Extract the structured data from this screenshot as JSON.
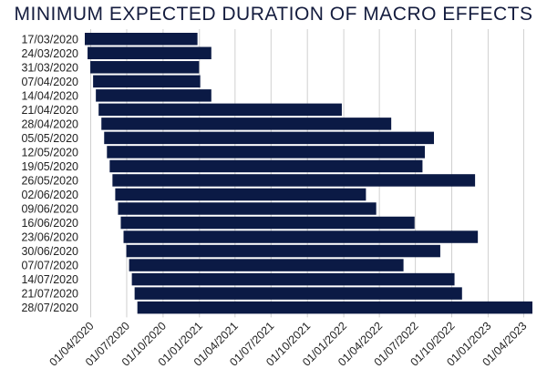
{
  "chart_data": {
    "type": "bar",
    "orientation": "horizontal",
    "title": "MINIMUM EXPECTED DURATION OF MACRO EFFECTS",
    "xlabel": "",
    "ylabel": "",
    "bar_color": "#0b1a45",
    "grid_color": "#d0d0d0",
    "grid": true,
    "x_axis_type": "date",
    "xlim": [
      "2020-03-17",
      "2023-04-23"
    ],
    "x_ticks": [
      {
        "date": "2020-04-01",
        "label": "01/04/2020"
      },
      {
        "date": "2020-07-01",
        "label": "01/07/2020"
      },
      {
        "date": "2020-10-01",
        "label": "01/10/2020"
      },
      {
        "date": "2021-01-01",
        "label": "01/01/2021"
      },
      {
        "date": "2021-04-01",
        "label": "01/04/2021"
      },
      {
        "date": "2021-07-01",
        "label": "01/07/2021"
      },
      {
        "date": "2021-10-01",
        "label": "01/10/2021"
      },
      {
        "date": "2022-01-01",
        "label": "01/01/2022"
      },
      {
        "date": "2022-04-01",
        "label": "01/04/2022"
      },
      {
        "date": "2022-07-01",
        "label": "01/07/2022"
      },
      {
        "date": "2022-10-01",
        "label": "01/10/2022"
      },
      {
        "date": "2023-01-01",
        "label": "01/01/2023"
      },
      {
        "date": "2023-04-01",
        "label": "01/04/2023"
      }
    ],
    "categories": [
      "17/03/2020",
      "24/03/2020",
      "31/03/2020",
      "07/04/2020",
      "14/04/2020",
      "21/04/2020",
      "28/04/2020",
      "05/05/2020",
      "12/05/2020",
      "19/05/2020",
      "26/05/2020",
      "02/06/2020",
      "09/06/2020",
      "16/06/2020",
      "23/06/2020",
      "30/06/2020",
      "07/07/2020",
      "14/07/2020",
      "21/07/2020",
      "28/07/2020"
    ],
    "bars": [
      {
        "start": "2020-03-17",
        "end": "2020-12-27"
      },
      {
        "start": "2020-03-24",
        "end": "2021-01-31"
      },
      {
        "start": "2020-03-31",
        "end": "2020-12-31"
      },
      {
        "start": "2020-04-07",
        "end": "2021-01-03"
      },
      {
        "start": "2020-04-14",
        "end": "2021-01-31"
      },
      {
        "start": "2020-04-21",
        "end": "2021-12-27"
      },
      {
        "start": "2020-04-28",
        "end": "2022-05-01"
      },
      {
        "start": "2020-05-05",
        "end": "2022-08-17"
      },
      {
        "start": "2020-05-12",
        "end": "2022-07-25"
      },
      {
        "start": "2020-05-19",
        "end": "2022-07-19"
      },
      {
        "start": "2020-05-26",
        "end": "2022-11-29"
      },
      {
        "start": "2020-06-02",
        "end": "2022-02-26"
      },
      {
        "start": "2020-06-09",
        "end": "2022-03-24"
      },
      {
        "start": "2020-06-16",
        "end": "2022-06-29"
      },
      {
        "start": "2020-06-23",
        "end": "2022-12-06"
      },
      {
        "start": "2020-06-30",
        "end": "2022-09-02"
      },
      {
        "start": "2020-07-07",
        "end": "2022-06-01"
      },
      {
        "start": "2020-07-14",
        "end": "2022-10-08"
      },
      {
        "start": "2020-07-21",
        "end": "2022-10-27"
      },
      {
        "start": "2020-07-28",
        "end": "2023-04-23"
      }
    ]
  }
}
